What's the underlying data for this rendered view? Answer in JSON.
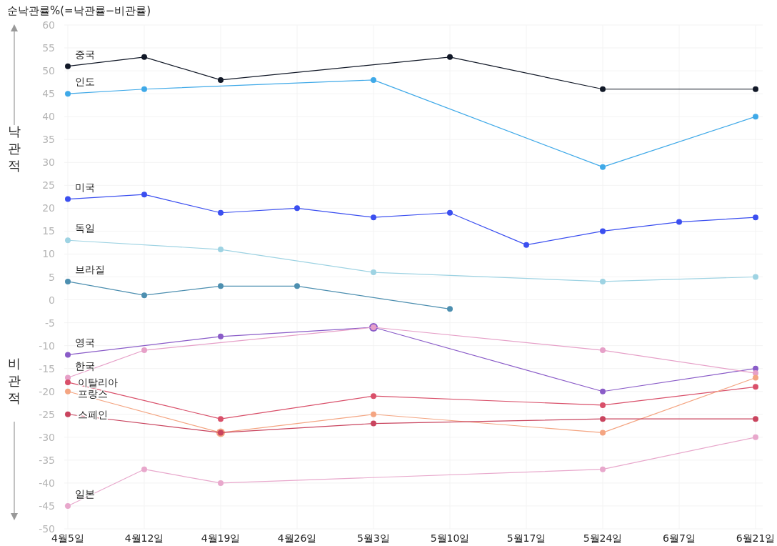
{
  "chart_data": {
    "type": "line",
    "ylabel": "순낙관률%(=낙관률−비관률)",
    "annotations": [
      "낙관적",
      "비관적"
    ],
    "categories": [
      "4월5일",
      "4월12일",
      "4월19일",
      "4월26일",
      "5월3일",
      "5월10일",
      "5월17일",
      "5월24일",
      "6월7일",
      "6월21일"
    ],
    "ylim": [
      -50,
      60
    ],
    "yticks": [
      -50,
      -45,
      -40,
      -35,
      -30,
      -25,
      -20,
      -15,
      -10,
      -5,
      0,
      5,
      10,
      15,
      20,
      25,
      30,
      35,
      40,
      45,
      50,
      55,
      60
    ],
    "grid": true,
    "marker": "circle",
    "line_style": "solid",
    "series": [
      {
        "name": "중국",
        "color": "#111827",
        "values": [
          51,
          53,
          48,
          null,
          null,
          53,
          null,
          46,
          null,
          46
        ]
      },
      {
        "name": "인도",
        "color": "#3fa9e8",
        "values": [
          45,
          46,
          null,
          null,
          48,
          null,
          null,
          29,
          null,
          40
        ]
      },
      {
        "name": "미국",
        "color": "#3b4ff0",
        "values": [
          22,
          23,
          19,
          20,
          18,
          19,
          12,
          15,
          17,
          18
        ]
      },
      {
        "name": "독일",
        "color": "#9ed3e3",
        "values": [
          13,
          null,
          11,
          null,
          6,
          null,
          null,
          4,
          null,
          5
        ]
      },
      {
        "name": "브라질",
        "color": "#4d8fb0",
        "values": [
          4,
          1,
          3,
          3,
          null,
          -2,
          null,
          null,
          null,
          null
        ]
      },
      {
        "name": "영국",
        "color": "#8a5cc8",
        "values": [
          -12,
          null,
          -8,
          null,
          -6,
          null,
          null,
          -20,
          null,
          -15
        ]
      },
      {
        "name": "한국",
        "color": "#e6a0c8",
        "values": [
          -17,
          -11,
          null,
          null,
          -6,
          null,
          null,
          -11,
          null,
          -16
        ]
      },
      {
        "name": "이탈리아",
        "color": "#d9506a",
        "values": [
          -18,
          null,
          -26,
          null,
          -21,
          null,
          null,
          -23,
          null,
          -19
        ]
      },
      {
        "name": "프랑스",
        "color": "#f4a582",
        "values": [
          -20,
          null,
          -29,
          null,
          -25,
          null,
          null,
          -29,
          null,
          -17
        ]
      },
      {
        "name": "스페인",
        "color": "#c9445e",
        "values": [
          -25,
          null,
          -29,
          null,
          -27,
          null,
          null,
          -26,
          null,
          -26
        ]
      },
      {
        "name": "일본",
        "color": "#e8a8cc",
        "values": [
          -45,
          -37,
          -40,
          null,
          null,
          null,
          null,
          -37,
          null,
          -30
        ]
      }
    ]
  }
}
